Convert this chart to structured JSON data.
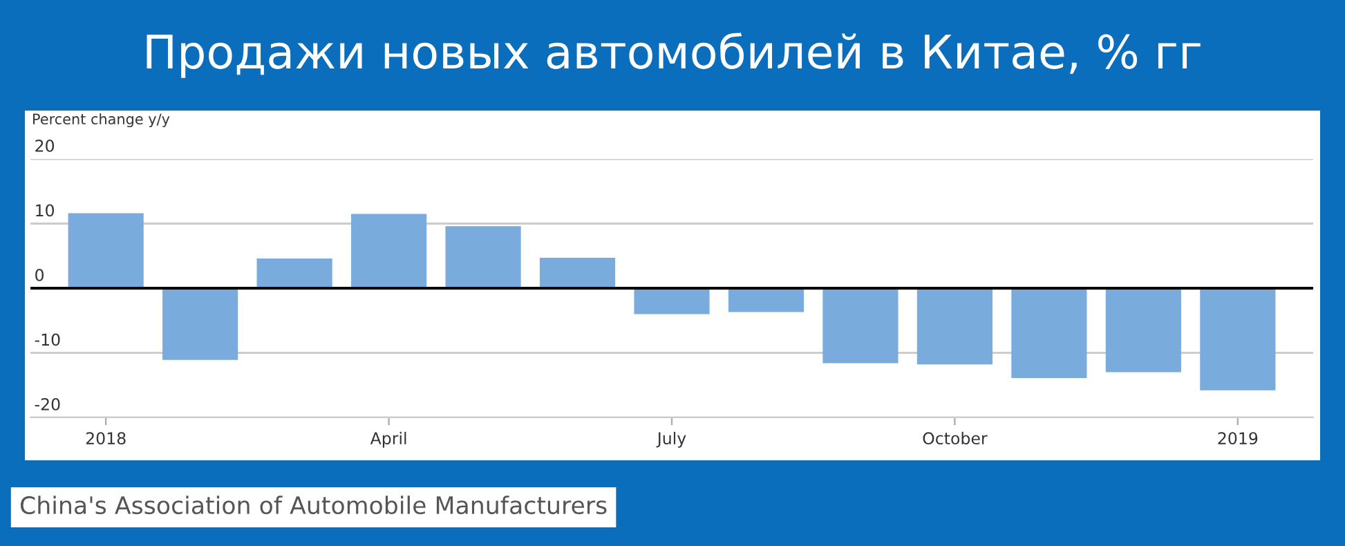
{
  "chart_data": {
    "type": "bar",
    "title": "Продажи новых автомобилей в Китае, % гг",
    "ylabel": "Percent change y/y",
    "categories": [
      "2018",
      null,
      null,
      "April",
      null,
      null,
      "July",
      null,
      null,
      "October",
      null,
      null,
      "2019"
    ],
    "values": [
      11.6,
      -11.1,
      4.6,
      11.5,
      9.6,
      4.7,
      -4.0,
      -3.7,
      -11.6,
      -11.8,
      -13.9,
      -13.0,
      -15.8
    ],
    "color": "#79acdc",
    "ylim": [
      -20,
      20
    ],
    "yticks": [
      -20,
      -10,
      0,
      10,
      20
    ],
    "grid": "y",
    "ref_lines": [
      {
        "axis": "y",
        "value": 0,
        "color": "#000000"
      }
    ],
    "annotations": [
      "China's Association of Automobile Manufacturers"
    ]
  }
}
